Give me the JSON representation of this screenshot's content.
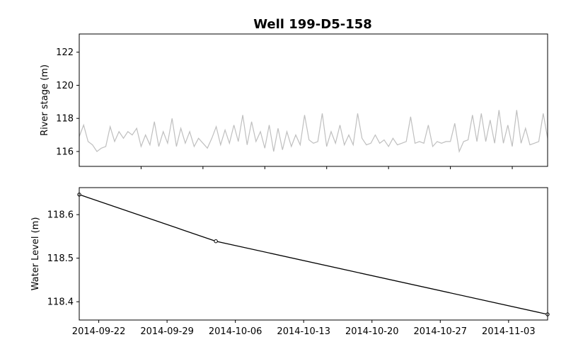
{
  "chart_data": [
    {
      "type": "line",
      "panel": "top",
      "title": "Well 199-D5-158",
      "xlabel": "",
      "ylabel": "River stage (m)",
      "xlim": [
        "2014-09-15",
        "2014-11-07"
      ],
      "ylim": [
        115.1,
        123.1
      ],
      "yticks": [
        116,
        118,
        120,
        122
      ],
      "xtick_dates": [
        "2014-09-22",
        "2014-09-29",
        "2014-10-06",
        "2014-10-13",
        "2014-10-20",
        "2014-10-27",
        "2014-11-03"
      ],
      "grid": false,
      "series": [
        {
          "color": "#bfbfbf",
          "x": [
            "2014-09-15",
            "2014-09-15T12",
            "2014-09-16",
            "2014-09-16T12",
            "2014-09-17",
            "2014-09-17T12",
            "2014-09-18",
            "2014-09-18T12",
            "2014-09-19",
            "2014-09-19T12",
            "2014-09-20",
            "2014-09-20T12",
            "2014-09-21",
            "2014-09-21T12",
            "2014-09-22",
            "2014-09-22T12",
            "2014-09-23",
            "2014-09-23T12",
            "2014-09-24",
            "2014-09-24T12",
            "2014-09-25",
            "2014-09-25T12",
            "2014-09-26",
            "2014-09-26T12",
            "2014-09-27",
            "2014-09-27T12",
            "2014-09-28",
            "2014-09-28T12",
            "2014-09-29",
            "2014-09-29T12",
            "2014-09-30",
            "2014-09-30T12",
            "2014-10-01",
            "2014-10-01T12",
            "2014-10-02",
            "2014-10-02T12",
            "2014-10-03",
            "2014-10-03T12",
            "2014-10-04",
            "2014-10-04T12",
            "2014-10-05",
            "2014-10-05T12",
            "2014-10-06",
            "2014-10-06T12",
            "2014-10-07",
            "2014-10-07T12",
            "2014-10-08",
            "2014-10-08T12",
            "2014-10-09",
            "2014-10-09T12",
            "2014-10-10",
            "2014-10-10T12",
            "2014-10-11",
            "2014-10-11T12",
            "2014-10-12",
            "2014-10-12T12",
            "2014-10-13",
            "2014-10-13T12",
            "2014-10-14",
            "2014-10-14T12",
            "2014-10-15",
            "2014-10-15T12",
            "2014-10-16",
            "2014-10-16T12",
            "2014-10-17",
            "2014-10-17T12",
            "2014-10-18",
            "2014-10-18T12",
            "2014-10-19",
            "2014-10-19T12",
            "2014-10-20",
            "2014-10-20T12",
            "2014-10-21",
            "2014-10-21T12",
            "2014-10-22",
            "2014-10-22T12",
            "2014-10-23",
            "2014-10-23T12",
            "2014-10-24",
            "2014-10-24T12",
            "2014-10-25",
            "2014-10-25T12",
            "2014-10-26",
            "2014-10-26T12",
            "2014-10-27",
            "2014-10-27T12",
            "2014-10-28",
            "2014-10-28T12",
            "2014-10-29",
            "2014-10-29T12",
            "2014-10-30",
            "2014-10-30T12",
            "2014-10-31",
            "2014-10-31T12",
            "2014-11-01",
            "2014-11-01T12",
            "2014-11-02",
            "2014-11-02T12",
            "2014-11-03",
            "2014-11-03T12",
            "2014-11-04",
            "2014-11-04T12",
            "2014-11-05",
            "2014-11-05T12",
            "2014-11-06",
            "2014-11-06T12",
            "2014-11-07"
          ],
          "y": [
            116.9,
            117.6,
            116.6,
            116.4,
            116.0,
            116.2,
            116.3,
            117.5,
            116.6,
            117.2,
            116.8,
            117.2,
            117.0,
            117.4,
            116.3,
            117.0,
            116.4,
            117.8,
            116.3,
            117.2,
            116.5,
            118.0,
            116.3,
            117.4,
            116.5,
            117.2,
            116.3,
            116.8,
            116.5,
            116.2,
            116.8,
            117.5,
            116.4,
            117.3,
            116.5,
            117.6,
            116.6,
            118.2,
            116.4,
            117.8,
            116.6,
            117.2,
            116.2,
            117.6,
            116.0,
            117.4,
            116.1,
            117.2,
            116.3,
            117.0,
            116.4,
            118.2,
            116.7,
            116.5,
            116.6,
            118.3,
            116.3,
            117.2,
            116.5,
            117.6,
            116.4,
            117.0,
            116.4,
            118.3,
            116.8,
            116.4,
            116.5,
            117.0,
            116.5,
            116.7,
            116.3,
            116.8,
            116.4,
            116.5,
            116.6,
            118.1,
            116.5,
            116.6,
            116.5,
            117.6,
            116.3,
            116.6,
            116.5,
            116.6,
            116.6,
            117.7,
            116.0,
            116.6,
            116.7,
            118.2,
            116.6,
            118.3,
            116.6,
            117.9,
            116.5,
            118.5,
            116.5,
            117.6,
            116.3,
            118.5,
            116.5,
            117.4,
            116.4,
            116.5,
            116.6,
            118.3,
            116.8
          ],
          "values_note": ""
        }
      ]
    },
    {
      "type": "line",
      "panel": "bottom",
      "xlabel": "",
      "ylabel": "Water Level (m)",
      "xlim": [
        "2014-09-20",
        "2014-11-07"
      ],
      "ylim": [
        118.358,
        118.662
      ],
      "yticks": [
        118.4,
        118.5,
        118.6
      ],
      "xticks": [
        "2014-09-22",
        "2014-09-29",
        "2014-10-06",
        "2014-10-13",
        "2014-10-20",
        "2014-10-27",
        "2014-11-03"
      ],
      "grid": false,
      "series": [
        {
          "color": "#000000",
          "x": [
            "2014-09-20",
            "2014-10-04",
            "2014-11-07"
          ],
          "y": [
            118.646,
            118.539,
            118.371
          ]
        }
      ]
    }
  ]
}
